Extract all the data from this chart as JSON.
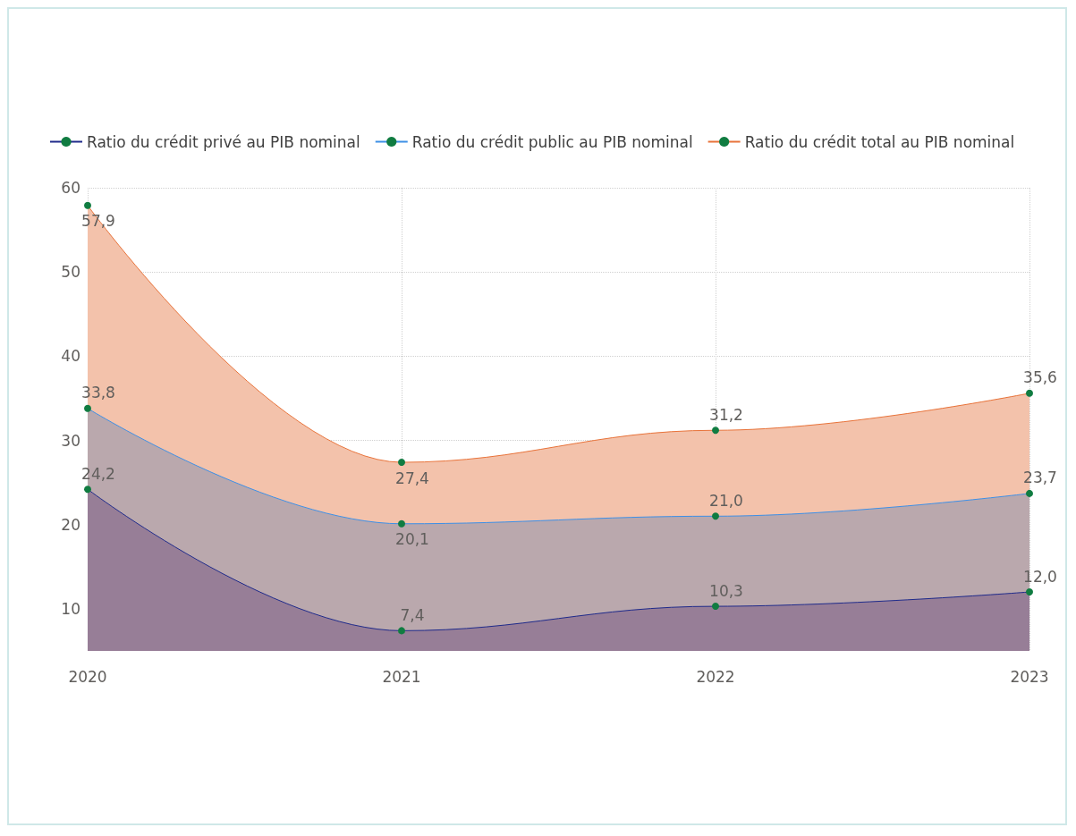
{
  "chart_data": {
    "type": "area",
    "categories": [
      "2020",
      "2021",
      "2022",
      "2023"
    ],
    "series": [
      {
        "name": "Ratio du crédit privé au PIB nominal",
        "color": "#977e97",
        "values": [
          24.2,
          7.4,
          10.3,
          12.0
        ],
        "value_labels": [
          "24,2",
          "7,4",
          "10,3",
          "12,0"
        ]
      },
      {
        "name": "Ratio du crédit public au PIB nominal",
        "color": "#baa8ad",
        "values": [
          33.8,
          20.1,
          21.0,
          23.7
        ],
        "value_labels": [
          "33,8",
          "20,1",
          "21,0",
          "23,7"
        ]
      },
      {
        "name": "Ratio du crédit total au PIB nominal",
        "color": "#f3c2ab",
        "values": [
          57.9,
          27.4,
          31.2,
          35.6
        ],
        "value_labels": [
          "57,9",
          "27,4",
          "31,2",
          "35,6"
        ]
      }
    ],
    "ylim": [
      5,
      60
    ],
    "yticks": [
      10,
      20,
      30,
      40,
      50,
      60
    ],
    "grid": true,
    "legend": "top left",
    "marker": "circle",
    "line_style": "solid"
  }
}
